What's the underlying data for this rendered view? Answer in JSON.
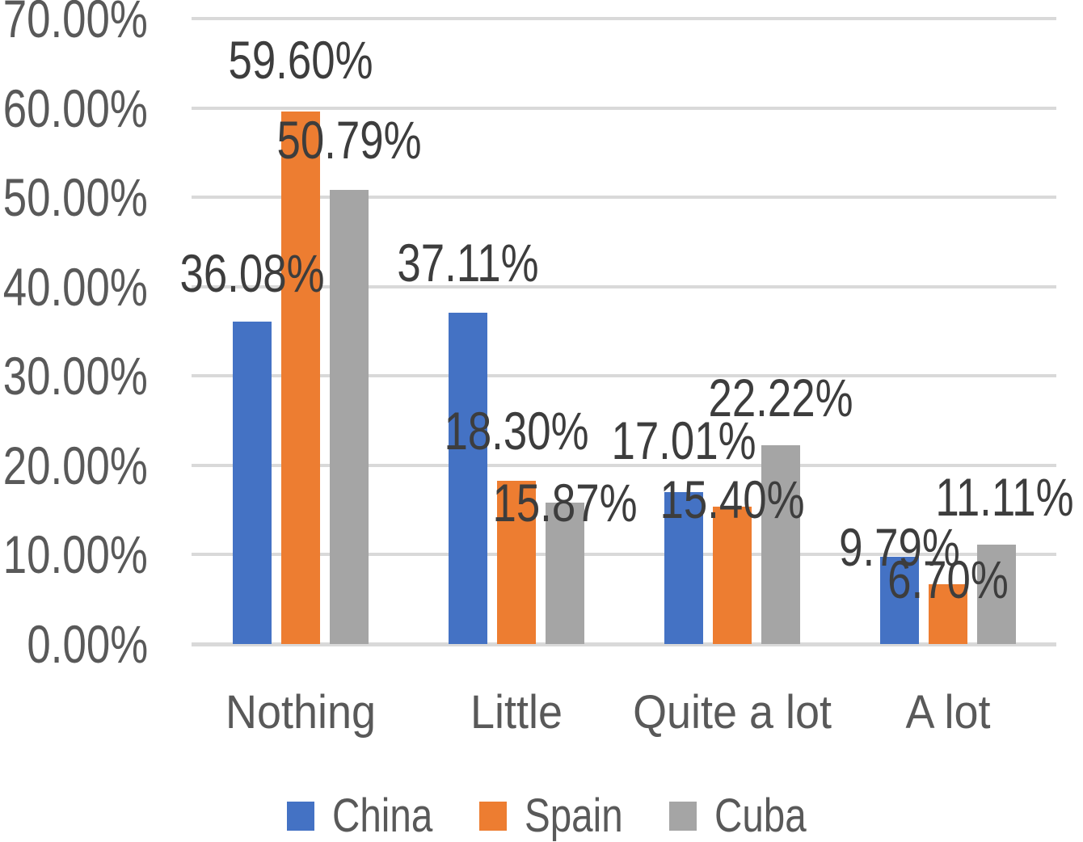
{
  "chart_data": {
    "type": "bar",
    "title": "",
    "xlabel": "",
    "ylabel": "",
    "categories": [
      "Nothing",
      "Little",
      "Quite a lot",
      "A lot"
    ],
    "series": [
      {
        "name": "China",
        "color": "#4472C4",
        "values": [
          36.08,
          37.11,
          17.01,
          9.79
        ]
      },
      {
        "name": "Spain",
        "color": "#ED7D31",
        "values": [
          59.6,
          18.3,
          15.4,
          6.7
        ]
      },
      {
        "name": "Cuba",
        "color": "#A5A5A5",
        "values": [
          50.79,
          15.87,
          22.22,
          11.11
        ]
      }
    ],
    "data_labels": [
      [
        "36.08%",
        "37.11%",
        "17.01%",
        "9.79%"
      ],
      [
        "59.60%",
        "18.30%",
        "15.40%",
        "6.70%"
      ],
      [
        "50.79%",
        "15.87%",
        "22.22%",
        "11.11%"
      ]
    ],
    "y_axis": {
      "min": 0,
      "max": 70,
      "step": 10,
      "tick_labels": [
        "0.00%",
        "10.00%",
        "20.00%",
        "30.00%",
        "40.00%",
        "50.00%",
        "60.00%",
        "70.00%"
      ]
    },
    "legend": {
      "position": "bottom",
      "entries": [
        "China",
        "Spain",
        "Cuba"
      ]
    },
    "grid": true
  },
  "colors": {
    "gridline": "#D9D9D9",
    "axis_text": "#595959",
    "data_label_text": "#3D3D3D",
    "background": "#FFFFFF"
  }
}
